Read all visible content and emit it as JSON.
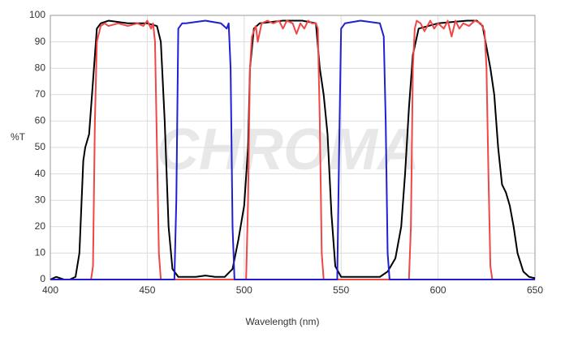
{
  "chart_data": {
    "type": "line",
    "watermark": "CHROMA",
    "xlabel": "Wavelength (nm)",
    "ylabel": "%T",
    "xlim": [
      400,
      650
    ],
    "xticks": [
      400,
      450,
      500,
      550,
      600,
      650
    ],
    "ylim": [
      0,
      100
    ],
    "yticks": [
      0,
      10,
      20,
      30,
      40,
      50,
      60,
      70,
      80,
      90,
      100
    ],
    "grid": true,
    "series": [
      {
        "color": "#000000",
        "x": [
          400,
          403,
          407,
          410,
          413,
          415,
          417,
          418,
          420,
          422,
          424,
          426,
          430,
          440,
          450,
          455,
          457,
          459,
          461,
          463,
          466,
          475,
          480,
          485,
          490,
          494,
          497,
          500,
          502,
          503,
          505,
          508,
          520,
          530,
          537,
          539,
          541,
          543,
          545,
          547,
          550,
          560,
          570,
          574,
          578,
          581,
          583,
          585,
          587,
          590,
          600,
          615,
          620,
          623,
          625,
          627,
          629,
          631,
          633,
          635,
          637,
          639,
          641,
          644,
          647,
          650
        ],
        "values": [
          0,
          1,
          0,
          0,
          1,
          10,
          45,
          50,
          55,
          75,
          95,
          97,
          98,
          97,
          97,
          96,
          90,
          60,
          20,
          4,
          1,
          1,
          1.5,
          1,
          1,
          4,
          15,
          28,
          50,
          80,
          95,
          97,
          98,
          98,
          97,
          80,
          70,
          55,
          25,
          5,
          1,
          1,
          1,
          3,
          8,
          20,
          40,
          65,
          85,
          95,
          97,
          98,
          98,
          96,
          88,
          80,
          70,
          50,
          36,
          33,
          28,
          20,
          10,
          3,
          1,
          0.5
        ]
      },
      {
        "color": "#f04646",
        "x": [
          400,
          421,
          422,
          423,
          424,
          426,
          428,
          430,
          435,
          440,
          445,
          448,
          450,
          452,
          453,
          454,
          455,
          456,
          457,
          501,
          502,
          503,
          504,
          506,
          507,
          509,
          512,
          515,
          518,
          520,
          522,
          525,
          527,
          529,
          531,
          533,
          535,
          537,
          538,
          539,
          540,
          541,
          585,
          586,
          587,
          588,
          589,
          591,
          593,
          596,
          598,
          600,
          603,
          605,
          607,
          609,
          611,
          613,
          616,
          619,
          622,
          624,
          625,
          626,
          627,
          628,
          650
        ],
        "values": [
          0,
          0,
          5,
          60,
          90,
          96,
          97,
          96,
          97,
          96,
          97,
          96,
          98,
          95,
          97,
          90,
          50,
          10,
          0,
          0,
          30,
          80,
          92,
          96,
          90,
          97,
          98,
          97,
          98,
          95,
          98,
          97,
          93,
          97,
          95,
          98,
          97,
          97,
          95,
          60,
          10,
          0,
          0,
          20,
          80,
          95,
          98,
          97,
          94,
          98,
          95,
          97,
          95,
          98,
          92,
          98,
          95,
          97,
          96,
          98,
          97,
          94,
          80,
          40,
          5,
          0,
          0
        ]
      },
      {
        "color": "#2020d0",
        "x": [
          400,
          464,
          465,
          466,
          468,
          470,
          480,
          488,
          491,
          492,
          493,
          494,
          495,
          548,
          549,
          550,
          552,
          560,
          570,
          572,
          573,
          574,
          575,
          650
        ],
        "values": [
          0,
          0,
          30,
          95,
          97,
          97,
          98,
          97,
          95,
          97,
          80,
          20,
          0,
          0,
          50,
          95,
          97,
          98,
          97,
          92,
          60,
          10,
          0,
          0
        ]
      }
    ]
  }
}
